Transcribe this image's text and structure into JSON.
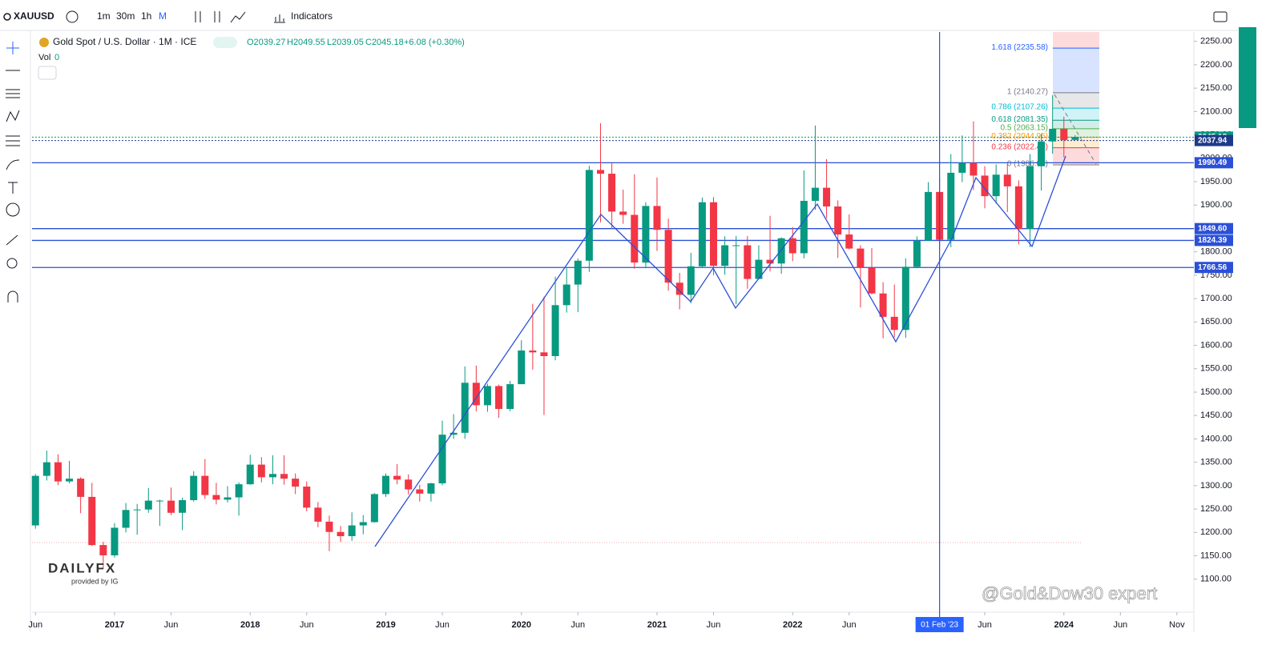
{
  "toolbar": {
    "symbol": "XAUUSD",
    "intervals": [
      "1m",
      "30m",
      "1h",
      "M"
    ],
    "indicators": "Indicators"
  },
  "legend": {
    "title": "Gold Spot / U.S. Dollar · 1M · ICE",
    "open": "O2039.27",
    "high": "H2049.55",
    "low": "L2039.05",
    "close": "C2045.18",
    "change": "+6.08 (+0.30%)",
    "vol_label": "Vol",
    "vol_value": "0"
  },
  "chart_data": {
    "type": "candlestick",
    "up_color": "#089981",
    "down_color": "#f23645",
    "candles": [
      [
        1215,
        1325,
        1208,
        1321
      ],
      [
        1321,
        1375,
        1311,
        1350
      ],
      [
        1350,
        1367,
        1301,
        1309
      ],
      [
        1309,
        1353,
        1305,
        1315
      ],
      [
        1315,
        1318,
        1241,
        1276
      ],
      [
        1276,
        1306,
        1171,
        1173
      ],
      [
        1173,
        1180,
        1122,
        1151
      ],
      [
        1151,
        1220,
        1146,
        1210
      ],
      [
        1210,
        1263,
        1200,
        1248
      ],
      [
        1248,
        1261,
        1195,
        1249
      ],
      [
        1249,
        1295,
        1242,
        1268
      ],
      [
        1268,
        1270,
        1214,
        1268
      ],
      [
        1268,
        1296,
        1237,
        1242
      ],
      [
        1242,
        1274,
        1205,
        1269
      ],
      [
        1269,
        1331,
        1266,
        1321
      ],
      [
        1321,
        1357,
        1272,
        1280
      ],
      [
        1280,
        1306,
        1260,
        1270
      ],
      [
        1270,
        1299,
        1264,
        1275
      ],
      [
        1275,
        1307,
        1236,
        1303
      ],
      [
        1303,
        1366,
        1302,
        1345
      ],
      [
        1345,
        1361,
        1307,
        1318
      ],
      [
        1318,
        1365,
        1303,
        1325
      ],
      [
        1325,
        1365,
        1302,
        1315
      ],
      [
        1315,
        1326,
        1282,
        1298
      ],
      [
        1298,
        1309,
        1245,
        1253
      ],
      [
        1253,
        1265,
        1211,
        1223
      ],
      [
        1223,
        1236,
        1160,
        1201
      ],
      [
        1201,
        1214,
        1180,
        1192
      ],
      [
        1192,
        1243,
        1182,
        1215
      ],
      [
        1215,
        1237,
        1196,
        1222
      ],
      [
        1222,
        1284,
        1221,
        1282
      ],
      [
        1282,
        1326,
        1276,
        1321
      ],
      [
        1321,
        1346,
        1303,
        1313
      ],
      [
        1313,
        1324,
        1281,
        1292
      ],
      [
        1292,
        1302,
        1266,
        1283
      ],
      [
        1283,
        1306,
        1266,
        1305
      ],
      [
        1305,
        1439,
        1301,
        1409
      ],
      [
        1409,
        1453,
        1400,
        1413
      ],
      [
        1413,
        1555,
        1400,
        1520
      ],
      [
        1520,
        1557,
        1459,
        1472
      ],
      [
        1472,
        1518,
        1458,
        1513
      ],
      [
        1513,
        1516,
        1445,
        1464
      ],
      [
        1464,
        1524,
        1459,
        1517
      ],
      [
        1517,
        1611,
        1517,
        1589
      ],
      [
        1589,
        1689,
        1548,
        1585
      ],
      [
        1585,
        1704,
        1451,
        1577
      ],
      [
        1577,
        1747,
        1568,
        1686
      ],
      [
        1686,
        1765,
        1670,
        1730
      ],
      [
        1730,
        1786,
        1671,
        1781
      ],
      [
        1781,
        1984,
        1757,
        1975
      ],
      [
        1975,
        2075,
        1863,
        1967
      ],
      [
        1967,
        1992,
        1849,
        1886
      ],
      [
        1886,
        1933,
        1860,
        1879
      ],
      [
        1879,
        1966,
        1764,
        1777
      ],
      [
        1777,
        1906,
        1765,
        1898
      ],
      [
        1898,
        1959,
        1802,
        1847
      ],
      [
        1847,
        1871,
        1717,
        1734
      ],
      [
        1734,
        1755,
        1677,
        1708
      ],
      [
        1708,
        1798,
        1690,
        1769
      ],
      [
        1769,
        1916,
        1765,
        1906
      ],
      [
        1906,
        1917,
        1750,
        1770
      ],
      [
        1770,
        1833,
        1751,
        1814
      ],
      [
        1814,
        1834,
        1688,
        1814
      ],
      [
        1814,
        1834,
        1721,
        1742
      ],
      [
        1742,
        1814,
        1746,
        1783
      ],
      [
        1783,
        1877,
        1758,
        1775
      ],
      [
        1775,
        1831,
        1753,
        1829
      ],
      [
        1829,
        1853,
        1780,
        1797
      ],
      [
        1797,
        1974,
        1786,
        1909
      ],
      [
        1909,
        2070,
        1890,
        1937
      ],
      [
        1937,
        1998,
        1872,
        1897
      ],
      [
        1897,
        1910,
        1787,
        1837
      ],
      [
        1837,
        1880,
        1805,
        1807
      ],
      [
        1807,
        1814,
        1681,
        1766
      ],
      [
        1766,
        1808,
        1709,
        1711
      ],
      [
        1711,
        1735,
        1615,
        1661
      ],
      [
        1661,
        1730,
        1617,
        1633
      ],
      [
        1633,
        1786,
        1616,
        1768
      ],
      [
        1768,
        1833,
        1765,
        1824
      ],
      [
        1824,
        1949,
        1823,
        1928
      ],
      [
        1928,
        1959,
        1804,
        1826
      ],
      [
        1826,
        2009,
        1810,
        1969
      ],
      [
        1969,
        2049,
        1949,
        1990
      ],
      [
        1990,
        2079,
        1932,
        1963
      ],
      [
        1963,
        1983,
        1893,
        1919
      ],
      [
        1919,
        1987,
        1903,
        1965
      ],
      [
        1965,
        1988,
        1885,
        1940
      ],
      [
        1940,
        1953,
        1816,
        1849
      ],
      [
        1849,
        2009,
        1810,
        1983
      ],
      [
        1983,
        2052,
        1931,
        2036
      ],
      [
        2036,
        2135,
        2010,
        2063
      ],
      [
        2063,
        2089,
        2002,
        2039
      ],
      [
        2039.27,
        2049.55,
        2039.05,
        2045.18
      ]
    ],
    "xlim": [
      -0.3,
      102.5
    ],
    "xticks": [
      {
        "value": 0,
        "label": "Jun"
      },
      {
        "value": 7,
        "label": "2017"
      },
      {
        "value": 12,
        "label": "Jun"
      },
      {
        "value": 19,
        "label": "2018"
      },
      {
        "value": 24,
        "label": "Jun"
      },
      {
        "value": 31,
        "label": "2019"
      },
      {
        "value": 36,
        "label": "Jun"
      },
      {
        "value": 43,
        "label": "2020"
      },
      {
        "value": 48,
        "label": "Jun"
      },
      {
        "value": 55,
        "label": "2021"
      },
      {
        "value": 60,
        "label": "Jun"
      },
      {
        "value": 67,
        "label": "2022"
      },
      {
        "value": 72,
        "label": "Jun"
      },
      {
        "value": 84,
        "label": "Jun"
      },
      {
        "value": 91,
        "label": "2024"
      },
      {
        "value": 96,
        "label": "Jun"
      },
      {
        "value": 101,
        "label": "Nov"
      }
    ],
    "ylim": [
      1038,
      2270
    ],
    "yticks": [
      {
        "value": 1100,
        "label": "1100.00"
      },
      {
        "value": 1150,
        "label": "1150.00"
      },
      {
        "value": 1200,
        "label": "1200.00"
      },
      {
        "value": 1250,
        "label": "1250.00"
      },
      {
        "value": 1300,
        "label": "1300.00"
      },
      {
        "value": 1350,
        "label": "1350.00"
      },
      {
        "value": 1400,
        "label": "1400.00"
      },
      {
        "value": 1450,
        "label": "1450.00"
      },
      {
        "value": 1500,
        "label": "1500.00"
      },
      {
        "value": 1550,
        "label": "1550.00"
      },
      {
        "value": 1600,
        "label": "1600.00"
      },
      {
        "value": 1650,
        "label": "1650.00"
      },
      {
        "value": 1700,
        "label": "1700.00"
      },
      {
        "value": 1750,
        "label": "1750.00"
      },
      {
        "value": 1800,
        "label": "1800.00"
      },
      {
        "value": 1850,
        "label": "1850.00"
      },
      {
        "value": 1900,
        "label": "1900.00"
      },
      {
        "value": 1950,
        "label": "1950.00"
      },
      {
        "value": 2000,
        "label": "2000.00"
      },
      {
        "value": 2050,
        "label": "2050.00"
      },
      {
        "value": 2100,
        "label": "2100.00"
      },
      {
        "value": 2150,
        "label": "2150.00"
      },
      {
        "value": 2200,
        "label": "2200.00"
      },
      {
        "value": 2250,
        "label": "2250.00"
      }
    ],
    "price_lines": [
      {
        "value": 2045.18,
        "label": "2045.18",
        "color": "#089981"
      },
      {
        "value": 2037.94,
        "label": "2037.94",
        "color": "#1e3a8a"
      },
      {
        "value": 1990.49,
        "label": "1990.49",
        "color": "#2b50d8"
      },
      {
        "value": 1849.6,
        "label": "1849.60",
        "color": "#2b50d8"
      },
      {
        "value": 1824.39,
        "label": "1824.39",
        "color": "#2b50d8"
      },
      {
        "value": 1766.56,
        "label": "1766.56",
        "color": "#2b50d8"
      }
    ],
    "fib_levels": [
      {
        "value": 2235.58,
        "label": "1.618 (2235.58)",
        "color": "#2962ff"
      },
      {
        "value": 2140.27,
        "label": "1 (2140.27)",
        "color": "#787b86"
      },
      {
        "value": 2107.26,
        "label": "0.786 (2107.26)",
        "color": "#00bcd4"
      },
      {
        "value": 2081.35,
        "label": "0.618 (2081.35)",
        "color": "#089981"
      },
      {
        "value": 2063.15,
        "label": "0.5 (2063.15)",
        "color": "#4caf50"
      },
      {
        "value": 2044.95,
        "label": "0.382 (2044.95)",
        "color": "#ff9800"
      },
      {
        "value": 2022.43,
        "label": "0.236 (2022.43)",
        "color": "#f23645"
      },
      {
        "value": 1986.03,
        "label": "0 (1986.03)",
        "color": "#787b86"
      }
    ],
    "crosshair": {
      "value": 80,
      "label": "01 Feb '23"
    }
  },
  "watermarks": {
    "brand": "DAILYFX",
    "provider": "provided by IG",
    "author": "@Gold&Dow30 expert"
  }
}
